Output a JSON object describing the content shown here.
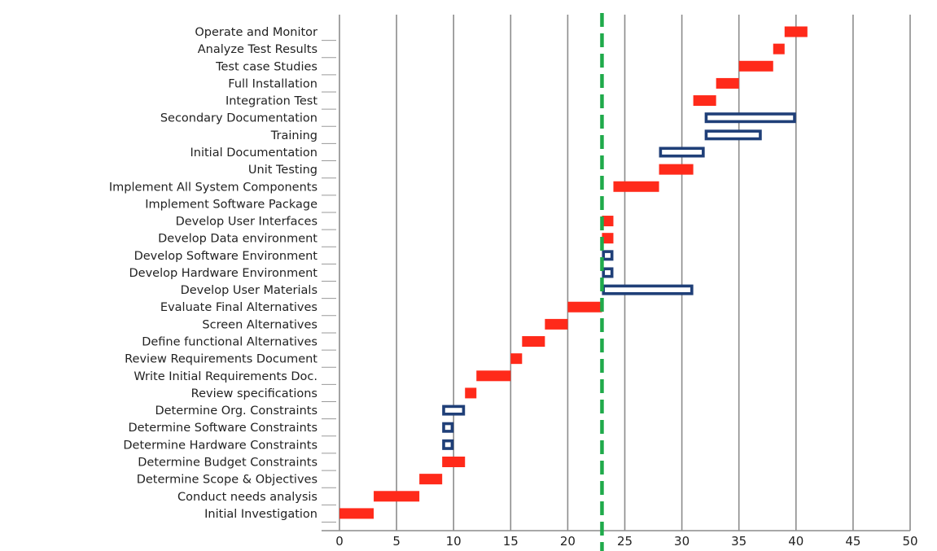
{
  "chart_data": {
    "type": "bar",
    "orientation": "horizontal",
    "xlim": [
      0,
      50
    ],
    "xticks": [
      0,
      5,
      10,
      15,
      20,
      25,
      30,
      35,
      40,
      45,
      50
    ],
    "grid": "vertical",
    "marker_line": {
      "x": 23,
      "color": "#1faa4a",
      "style": "dashed"
    },
    "colors": {
      "filled": "#ff2a1a",
      "outline": "#1f3f78",
      "grid": "#8c8c8c"
    },
    "tasks": [
      {
        "label": "Operate and Monitor",
        "start": 39,
        "end": 41,
        "style": "filled"
      },
      {
        "label": "Analyze Test Results",
        "start": 38,
        "end": 39,
        "style": "filled"
      },
      {
        "label": "Test case Studies",
        "start": 35,
        "end": 38,
        "style": "filled"
      },
      {
        "label": "Full Installation",
        "start": 33,
        "end": 35,
        "style": "filled"
      },
      {
        "label": "Integration Test",
        "start": 31,
        "end": 33,
        "style": "filled"
      },
      {
        "label": "Secondary Documentation",
        "start": 32,
        "end": 40,
        "style": "outline"
      },
      {
        "label": "Training",
        "start": 32,
        "end": 37,
        "style": "outline"
      },
      {
        "label": "Initial Documentation",
        "start": 28,
        "end": 32,
        "style": "outline"
      },
      {
        "label": "Unit Testing",
        "start": 28,
        "end": 31,
        "style": "filled"
      },
      {
        "label": "Implement All System Components",
        "start": 24,
        "end": 28,
        "style": "filled"
      },
      {
        "label": "Implement Software Package",
        "start": null,
        "end": null,
        "style": "none"
      },
      {
        "label": "Develop User Interfaces",
        "start": 23,
        "end": 24,
        "style": "filled"
      },
      {
        "label": "Develop Data environment",
        "start": 23,
        "end": 24,
        "style": "filled"
      },
      {
        "label": "Develop Software Environment",
        "start": 23,
        "end": 24,
        "style": "outline"
      },
      {
        "label": "Develop Hardware Environment",
        "start": 23,
        "end": 24,
        "style": "outline"
      },
      {
        "label": "Develop User Materials",
        "start": 23,
        "end": 31,
        "style": "outline"
      },
      {
        "label": "Evaluate Final Alternatives",
        "start": 20,
        "end": 23,
        "style": "filled"
      },
      {
        "label": "Screen Alternatives",
        "start": 18,
        "end": 20,
        "style": "filled"
      },
      {
        "label": "Define functional Alternatives",
        "start": 16,
        "end": 18,
        "style": "filled"
      },
      {
        "label": "Review Requirements Document",
        "start": 15,
        "end": 16,
        "style": "filled"
      },
      {
        "label": "Write Initial Requirements Doc.",
        "start": 12,
        "end": 15,
        "style": "filled"
      },
      {
        "label": "Review specifications",
        "start": 11,
        "end": 12,
        "style": "filled"
      },
      {
        "label": "Determine Org. Constraints",
        "start": 9,
        "end": 11,
        "style": "outline"
      },
      {
        "label": "Determine Software Constraints",
        "start": 9,
        "end": 10,
        "style": "outline"
      },
      {
        "label": "Determine Hardware Constraints",
        "start": 9,
        "end": 10,
        "style": "outline"
      },
      {
        "label": "Determine Budget Constraints",
        "start": 9,
        "end": 11,
        "style": "filled"
      },
      {
        "label": "Determine Scope & Objectives",
        "start": 7,
        "end": 9,
        "style": "filled"
      },
      {
        "label": "Conduct needs analysis",
        "start": 3,
        "end": 7,
        "style": "filled"
      },
      {
        "label": "Initial Investigation",
        "start": 0,
        "end": 3,
        "style": "filled"
      }
    ]
  }
}
